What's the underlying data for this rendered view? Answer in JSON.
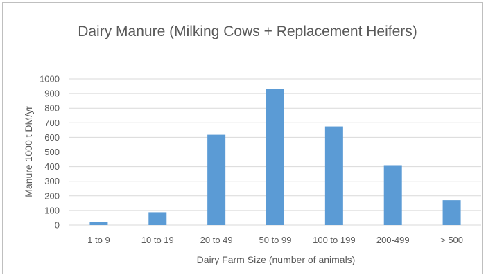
{
  "chart_data": {
    "type": "bar",
    "title": "Dairy Manure (Milking Cows + Replacement  Heifers)",
    "xlabel": "Dairy Farm Size (number of animals)",
    "ylabel": "Manure 1000 t DM/yr",
    "categories": [
      "1 to 9",
      "10 to 19",
      "20 to 49",
      "50 to 99",
      "100 to 199",
      "200-499",
      "> 500"
    ],
    "values": [
      22,
      88,
      618,
      930,
      675,
      410,
      170
    ],
    "ylim": [
      0,
      1000
    ],
    "yticks": [
      "0",
      "100",
      "200",
      "300",
      "400",
      "500",
      "600",
      "700",
      "800",
      "900",
      "1000"
    ],
    "grid": true,
    "legend": "none",
    "colors": {
      "bar": "#5b9bd5",
      "grid": "#d9d9d9",
      "text": "#595959",
      "border": "#bfbfbf"
    }
  }
}
